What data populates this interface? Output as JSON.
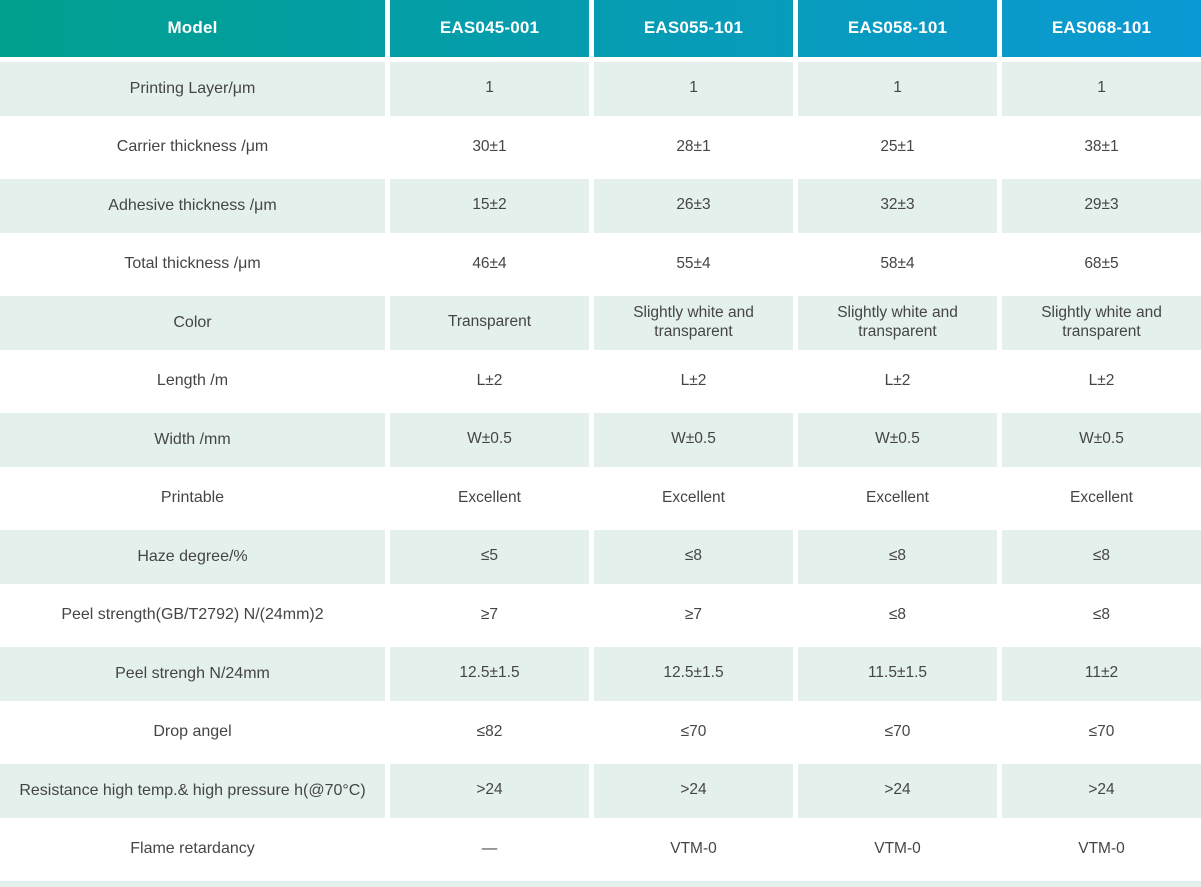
{
  "table": {
    "header": {
      "model_label": "Model",
      "columns": [
        "EAS045-001",
        "EAS055-101",
        "EAS058-101",
        "EAS068-101"
      ]
    },
    "rows": [
      {
        "label": "Printing Layer/μm",
        "values": [
          "1",
          "1",
          "1",
          "1"
        ]
      },
      {
        "label": "Carrier thickness /μm",
        "values": [
          "30±1",
          "28±1",
          "25±1",
          "38±1"
        ]
      },
      {
        "label": "Adhesive thickness /μm",
        "values": [
          "15±2",
          "26±3",
          "32±3",
          "29±3"
        ]
      },
      {
        "label": "Total thickness /μm",
        "values": [
          "46±4",
          "55±4",
          "58±4",
          "68±5"
        ]
      },
      {
        "label": "Color",
        "values": [
          "Transparent",
          "Slightly white and transparent",
          "Slightly white and transparent",
          "Slightly white and transparent"
        ]
      },
      {
        "label": "Length /m",
        "values": [
          "L±2",
          "L±2",
          "L±2",
          "L±2"
        ]
      },
      {
        "label": "Width /mm",
        "values": [
          "W±0.5",
          "W±0.5",
          "W±0.5",
          "W±0.5"
        ]
      },
      {
        "label": "Printable",
        "values": [
          "Excellent",
          "Excellent",
          "Excellent",
          "Excellent"
        ]
      },
      {
        "label": "Haze degree/%",
        "values": [
          "≤5",
          "≤8",
          "≤8",
          "≤8"
        ]
      },
      {
        "label": "Peel strength(GB/T2792)  N/(24mm)2",
        "values": [
          "≥7",
          "≥7",
          "≤8",
          "≤8"
        ]
      },
      {
        "label": "Peel strengh N/24mm",
        "values": [
          "12.5±1.5",
          "12.5±1.5",
          "11.5±1.5",
          "11±2"
        ]
      },
      {
        "label": "Drop angel",
        "values": [
          "≤82",
          "≤70",
          "≤70",
          "≤70"
        ]
      },
      {
        "label": "Resistance high temp.& high pressure h(@70°C)",
        "values": [
          ">24",
          ">24",
          ">24",
          ">24"
        ]
      },
      {
        "label": "Flame retardancy",
        "values": [
          "—",
          "VTM-0",
          "VTM-0",
          "VTM-0"
        ]
      }
    ]
  },
  "colors": {
    "header_gradient_start": "#00a08e",
    "header_gradient_end": "#0b99d4",
    "alt_row_bg": "#e4f0ec",
    "header_text": "#ffffff",
    "body_text": "#454545"
  }
}
